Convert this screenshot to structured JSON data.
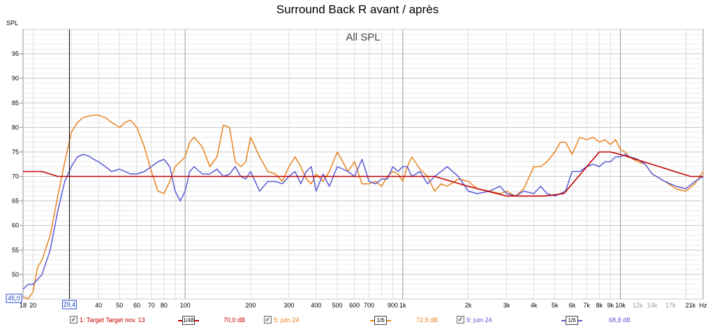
{
  "chart_data": {
    "type": "line",
    "title": "Surround Back R avant / après",
    "subtitle": "All SPL",
    "ylabel": "SPL",
    "xlabel": "",
    "x_scale": "log",
    "xlim": [
      18,
      24000
    ],
    "ylim": [
      45,
      100
    ],
    "grid": true,
    "y_ticks": [
      "95",
      "90",
      "85",
      "80",
      "75",
      "70",
      "65",
      "60",
      "55",
      "50"
    ],
    "y_cursor_label": "45,0",
    "x_cursor_label": "29,4",
    "x_ticks": [
      {
        "f": 18,
        "label": "18"
      },
      {
        "f": 20,
        "label": "20"
      },
      {
        "f": 40,
        "label": "40"
      },
      {
        "f": 50,
        "label": "50"
      },
      {
        "f": 60,
        "label": "60"
      },
      {
        "f": 70,
        "label": "70"
      },
      {
        "f": 80,
        "label": "80"
      },
      {
        "f": 100,
        "label": "100"
      },
      {
        "f": 200,
        "label": "200"
      },
      {
        "f": 300,
        "label": "300"
      },
      {
        "f": 400,
        "label": "400"
      },
      {
        "f": 500,
        "label": "500"
      },
      {
        "f": 600,
        "label": "600"
      },
      {
        "f": 700,
        "label": "700"
      },
      {
        "f": 900,
        "label": "900"
      },
      {
        "f": 1000,
        "label": "1k"
      },
      {
        "f": 2000,
        "label": "2k"
      },
      {
        "f": 3000,
        "label": "3k"
      },
      {
        "f": 4000,
        "label": "4k"
      },
      {
        "f": 5000,
        "label": "5k"
      },
      {
        "f": 6000,
        "label": "6k"
      },
      {
        "f": 7000,
        "label": "7k"
      },
      {
        "f": 8000,
        "label": "8k"
      },
      {
        "f": 9000,
        "label": "9k"
      },
      {
        "f": 10000,
        "label": "10k"
      },
      {
        "f": 12000,
        "label": "12k"
      },
      {
        "f": 14000,
        "label": "14k"
      },
      {
        "f": 17000,
        "label": "17k"
      },
      {
        "f": 21000,
        "label": "21k"
      },
      {
        "f": 24000,
        "label": "Hz"
      }
    ],
    "series": [
      {
        "name": "1: Target Target nov. 13",
        "color": "#c00000",
        "level": "70,0 dB",
        "smoothing": "1/48",
        "x": [
          18,
          22,
          26,
          30,
          50,
          100,
          500,
          1000,
          1400,
          2000,
          3000,
          4500,
          5500,
          8000,
          9000,
          10000,
          21000,
          24000
        ],
        "y": [
          71,
          71,
          70,
          70,
          70,
          70,
          70,
          70,
          70,
          68,
          66,
          66,
          66.5,
          75,
          75,
          74.5,
          70,
          70
        ]
      },
      {
        "name": "5: juin 24",
        "color": "#e8821e",
        "level": "72,9 dB",
        "smoothing": "1/6",
        "x": [
          18,
          19,
          20,
          21,
          22,
          24,
          26,
          28,
          30,
          32,
          34,
          36,
          38,
          40,
          43,
          46,
          50,
          53,
          56,
          60,
          65,
          70,
          75,
          80,
          85,
          90,
          95,
          100,
          105,
          110,
          120,
          130,
          140,
          150,
          160,
          170,
          180,
          190,
          200,
          220,
          240,
          260,
          280,
          300,
          320,
          340,
          360,
          380,
          400,
          430,
          460,
          500,
          530,
          560,
          600,
          650,
          700,
          750,
          800,
          850,
          900,
          950,
          1000,
          1050,
          1100,
          1200,
          1300,
          1400,
          1500,
          1600,
          1800,
          2000,
          2200,
          2500,
          2800,
          3000,
          3300,
          3600,
          4000,
          4300,
          4600,
          5000,
          5300,
          5600,
          6000,
          6500,
          7000,
          7500,
          8000,
          8500,
          9000,
          9500,
          10000,
          10500,
          11000,
          12000,
          13000,
          14000,
          16000,
          18000,
          20000,
          22000,
          24000
        ],
        "y": [
          45.5,
          45,
          46.5,
          51.5,
          53,
          58,
          66,
          73,
          79,
          81,
          82,
          82.3,
          82.5,
          82.5,
          82,
          81,
          80,
          81,
          81.5,
          80,
          76,
          71,
          67,
          66.5,
          69,
          72,
          73,
          74,
          77,
          78,
          76,
          72,
          74,
          80.5,
          80,
          73,
          72,
          73,
          78,
          74,
          71,
          70.5,
          69,
          72,
          74,
          72,
          69.5,
          68.5,
          70.5,
          69,
          71,
          75,
          73,
          71,
          73,
          68.5,
          68.5,
          69,
          68,
          70,
          71,
          70.5,
          69,
          72,
          74,
          71.5,
          70,
          67,
          68.5,
          68,
          69.5,
          69,
          67.5,
          67,
          66.5,
          67,
          66,
          67.5,
          72,
          72,
          73,
          75,
          77,
          77,
          74.5,
          78,
          77.5,
          78,
          77,
          77.5,
          76.5,
          77.5,
          75.5,
          75,
          74,
          73,
          72.5,
          70.5,
          69,
          67.5,
          67,
          68.5,
          71
        ]
      },
      {
        "name": "9: juin 24",
        "color": "#5a5ad6",
        "level": "68,8 dB",
        "smoothing": "1/6",
        "x": [
          18,
          19,
          20,
          21,
          22,
          24,
          26,
          28,
          30,
          32,
          34,
          36,
          38,
          40,
          43,
          46,
          50,
          53,
          56,
          60,
          65,
          70,
          75,
          80,
          85,
          90,
          95,
          100,
          105,
          110,
          120,
          130,
          140,
          150,
          160,
          170,
          180,
          190,
          200,
          220,
          240,
          260,
          280,
          300,
          320,
          340,
          360,
          380,
          400,
          430,
          460,
          500,
          530,
          560,
          600,
          650,
          700,
          750,
          800,
          850,
          900,
          950,
          1000,
          1050,
          1100,
          1200,
          1300,
          1400,
          1500,
          1600,
          1800,
          2000,
          2200,
          2500,
          2800,
          3000,
          3300,
          3600,
          4000,
          4300,
          4600,
          5000,
          5300,
          5600,
          6000,
          6500,
          7000,
          7500,
          8000,
          8500,
          9000,
          9500,
          10000,
          10500,
          11000,
          12000,
          13000,
          14000,
          16000,
          18000,
          20000,
          22000,
          24000
        ],
        "y": [
          47,
          48,
          48,
          49,
          50,
          55,
          63,
          69,
          72,
          74,
          74.5,
          74.2,
          73.5,
          73,
          72,
          71,
          71.5,
          71,
          70.5,
          70.5,
          71,
          72,
          73,
          73.5,
          72,
          67,
          65,
          67,
          71,
          72,
          70.5,
          70.5,
          71.5,
          70,
          70.5,
          72,
          70,
          69.5,
          71,
          67,
          69,
          69,
          68.5,
          70,
          71,
          68.5,
          71,
          72,
          67,
          70.5,
          68,
          72,
          71.5,
          71,
          70,
          73.5,
          69,
          68.5,
          69.5,
          69.5,
          72,
          71,
          72,
          72,
          70,
          71,
          68.5,
          70,
          71,
          72,
          70,
          67,
          66.5,
          67,
          68,
          66.5,
          66,
          67,
          66.5,
          68,
          66.5,
          66,
          66.5,
          67,
          71,
          71,
          72,
          72.5,
          72,
          73,
          73,
          74,
          74,
          74.5,
          74,
          73.5,
          72.5,
          70.5,
          69,
          68,
          67.5,
          69,
          70
        ]
      }
    ]
  }
}
